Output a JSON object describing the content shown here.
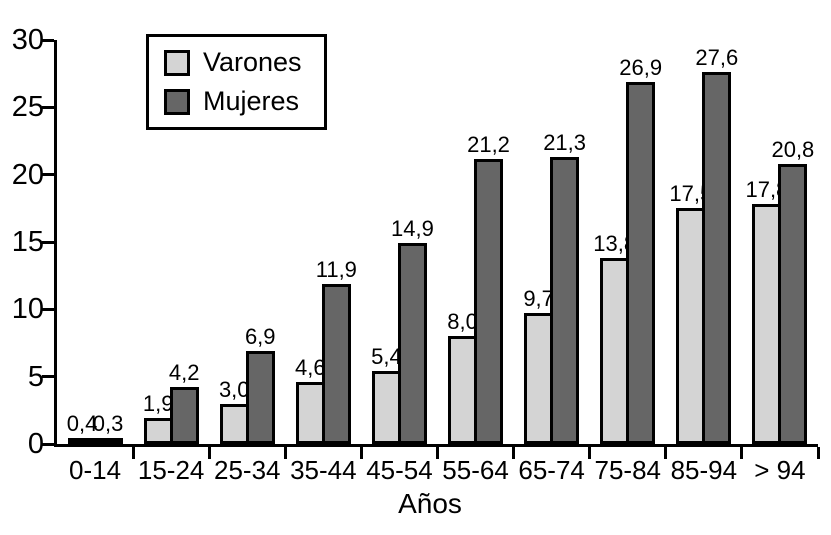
{
  "chart_data": {
    "type": "bar",
    "title": "",
    "xlabel": "Años",
    "ylabel": "",
    "ylim": [
      0,
      30
    ],
    "yticks": [
      0,
      5,
      10,
      15,
      20,
      25,
      30
    ],
    "grid": false,
    "legend_position": "top-left-inside",
    "categories": [
      "0-14",
      "15-24",
      "25-34",
      "35-44",
      "45-54",
      "55-64",
      "65-74",
      "75-84",
      "85-94",
      "> 94"
    ],
    "series": [
      {
        "name": "Varones",
        "color": "#d4d4d4",
        "values": [
          0.4,
          1.9,
          3.0,
          4.6,
          5.4,
          8.0,
          9.7,
          13.8,
          17.5,
          17.8
        ],
        "labels": [
          "0,4",
          "1,9",
          "3,0",
          "4,6",
          "5,4",
          "8,0",
          "9,7",
          "13,8",
          "17,5",
          "17,8"
        ]
      },
      {
        "name": "Mujeres",
        "color": "#666666",
        "values": [
          0.3,
          4.2,
          6.9,
          11.9,
          14.9,
          21.2,
          21.3,
          26.9,
          27.6,
          20.8
        ],
        "labels": [
          "0,3",
          "4,2",
          "6,9",
          "11,9",
          "14,9",
          "21,2",
          "21,3",
          "26,9",
          "27,6",
          "20,8"
        ]
      }
    ],
    "colors": {
      "bar_outline": "#000000",
      "axis": "#000000",
      "background": "#ffffff",
      "text": "#000000"
    }
  }
}
